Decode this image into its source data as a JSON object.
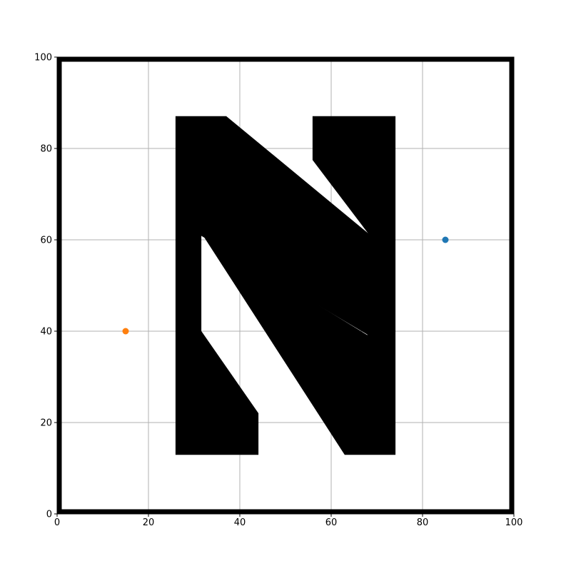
{
  "chart_data": {
    "type": "scatter",
    "title": "",
    "xlabel": "",
    "ylabel": "",
    "xlim": [
      0,
      100
    ],
    "ylim": [
      0,
      100
    ],
    "grid": true,
    "x_ticks": [
      "0",
      "20",
      "40",
      "60",
      "80",
      "100"
    ],
    "y_ticks": [
      "0",
      "20",
      "40",
      "60",
      "80",
      "100"
    ],
    "series": [
      {
        "values": [
          {
            "x": 85,
            "y": 60
          }
        ],
        "color": "#1f77b4"
      },
      {
        "values": [
          {
            "x": 15,
            "y": 40
          }
        ],
        "color": "#ff7f0e"
      }
    ],
    "obstacle": {
      "shape": "letter-N",
      "color": "#000000",
      "polygons": [
        [
          [
            26,
            13
          ],
          [
            26,
            87
          ],
          [
            37,
            87
          ],
          [
            68.5,
            61
          ],
          [
            68.5,
            39
          ],
          [
            31.5,
            61
          ],
          [
            31.5,
            40
          ],
          [
            44,
            22
          ],
          [
            44,
            13
          ]
        ],
        [
          [
            56,
            87
          ],
          [
            74,
            87
          ],
          [
            74,
            13
          ],
          [
            63,
            13
          ],
          [
            32,
            61
          ],
          [
            68,
            39
          ],
          [
            68.5,
            61
          ],
          [
            56,
            77.5
          ]
        ]
      ]
    }
  }
}
